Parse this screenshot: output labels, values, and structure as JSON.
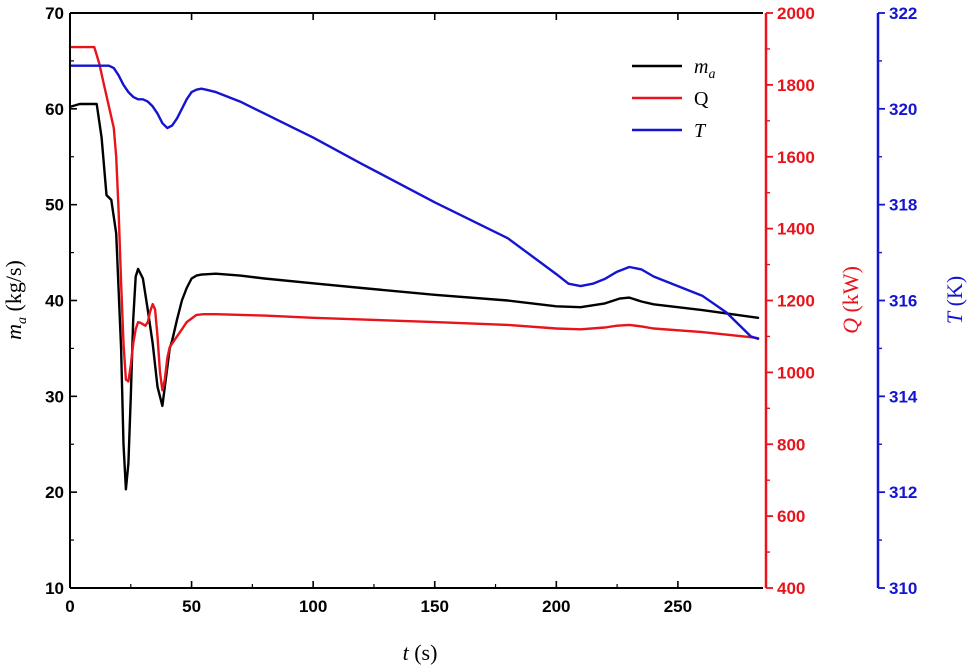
{
  "chart_data": {
    "type": "line",
    "xlabel": {
      "symbol": "t",
      "unit": " (s)"
    },
    "xlim": [
      0,
      285
    ],
    "xticks": [
      0,
      50,
      100,
      150,
      200,
      250
    ],
    "axes": {
      "left": {
        "symbol": "m",
        "sub": "a",
        "unit": " (kg/s)",
        "lim": [
          10,
          70
        ],
        "ticks": [
          10,
          20,
          30,
          40,
          50,
          60,
          70
        ],
        "color": "#000000"
      },
      "right1": {
        "symbol": "Q",
        "unit": " (kW)",
        "lim": [
          400,
          2000
        ],
        "ticks": [
          400,
          600,
          800,
          1000,
          1200,
          1400,
          1600,
          1800,
          2000
        ],
        "color": "#e8141c"
      },
      "right2": {
        "symbol": "T",
        "unit": " (K)",
        "lim": [
          310,
          322
        ],
        "ticks": [
          310,
          312,
          314,
          316,
          318,
          320,
          322
        ],
        "color": "#1414d2"
      }
    },
    "legend": {
      "position": "top-right"
    },
    "series": [
      {
        "name": "m_a",
        "label": "m",
        "label_sub": "a",
        "axis": "left",
        "color": "#000000",
        "x": [
          0,
          4,
          11,
          13,
          15,
          17,
          19,
          21,
          22,
          23,
          24,
          25,
          26,
          27,
          28,
          30,
          32,
          34,
          36,
          38,
          39,
          40,
          41,
          42,
          44,
          46,
          48,
          50,
          52,
          54,
          60,
          70,
          80,
          100,
          120,
          150,
          180,
          200,
          210,
          220,
          226,
          230,
          235,
          240,
          260,
          280,
          283
        ],
        "y": [
          60.2,
          60.5,
          60.5,
          57,
          51,
          50.5,
          47,
          35,
          25,
          20.3,
          23,
          30,
          38,
          42.5,
          43.3,
          42.3,
          39,
          35.5,
          31,
          29,
          31,
          33,
          35,
          35.8,
          38,
          40,
          41.3,
          42.3,
          42.6,
          42.7,
          42.8,
          42.6,
          42.3,
          41.8,
          41.3,
          40.6,
          40,
          39.4,
          39.3,
          39.7,
          40.2,
          40.3,
          39.9,
          39.6,
          39,
          38.3,
          38.2
        ]
      },
      {
        "name": "Q",
        "label": "Q",
        "axis": "right1",
        "color": "#e8141c",
        "x": [
          0,
          10,
          12,
          14,
          16,
          18,
          19,
          20,
          21,
          22,
          23,
          24,
          25,
          26,
          27,
          28,
          29,
          31,
          32,
          33,
          34,
          35,
          36,
          37,
          38,
          39,
          40,
          41,
          42,
          44,
          46,
          48,
          50,
          52,
          55,
          60,
          80,
          100,
          150,
          180,
          200,
          210,
          220,
          225,
          230,
          235,
          240,
          260,
          280,
          283
        ],
        "y": [
          1905,
          1905,
          1860,
          1800,
          1740,
          1680,
          1600,
          1450,
          1250,
          1080,
          980,
          975,
          1020,
          1080,
          1120,
          1140,
          1138,
          1130,
          1140,
          1170,
          1190,
          1175,
          1100,
          1000,
          950,
          980,
          1040,
          1070,
          1080,
          1100,
          1120,
          1140,
          1150,
          1160,
          1162,
          1162,
          1158,
          1152,
          1140,
          1132,
          1122,
          1120,
          1125,
          1130,
          1132,
          1128,
          1122,
          1112,
          1098,
          1095
        ]
      },
      {
        "name": "T",
        "label": "T",
        "axis": "right2",
        "color": "#1414d2",
        "x": [
          0,
          10,
          16,
          18,
          20,
          22,
          24,
          26,
          28,
          30,
          32,
          34,
          36,
          38,
          40,
          42,
          44,
          46,
          48,
          50,
          52,
          54,
          56,
          60,
          70,
          80,
          100,
          120,
          150,
          180,
          200,
          205,
          210,
          215,
          220,
          225,
          230,
          235,
          240,
          260,
          270,
          275,
          280,
          283
        ],
        "y": [
          320.9,
          320.9,
          320.9,
          320.85,
          320.7,
          320.5,
          320.35,
          320.25,
          320.2,
          320.2,
          320.15,
          320.05,
          319.9,
          319.7,
          319.6,
          319.65,
          319.8,
          320,
          320.2,
          320.35,
          320.4,
          320.42,
          320.4,
          320.35,
          320.15,
          319.9,
          319.4,
          318.85,
          318.05,
          317.3,
          316.55,
          316.35,
          316.3,
          316.35,
          316.45,
          316.6,
          316.7,
          316.65,
          316.5,
          316.1,
          315.75,
          315.5,
          315.25,
          315.2
        ]
      }
    ]
  }
}
